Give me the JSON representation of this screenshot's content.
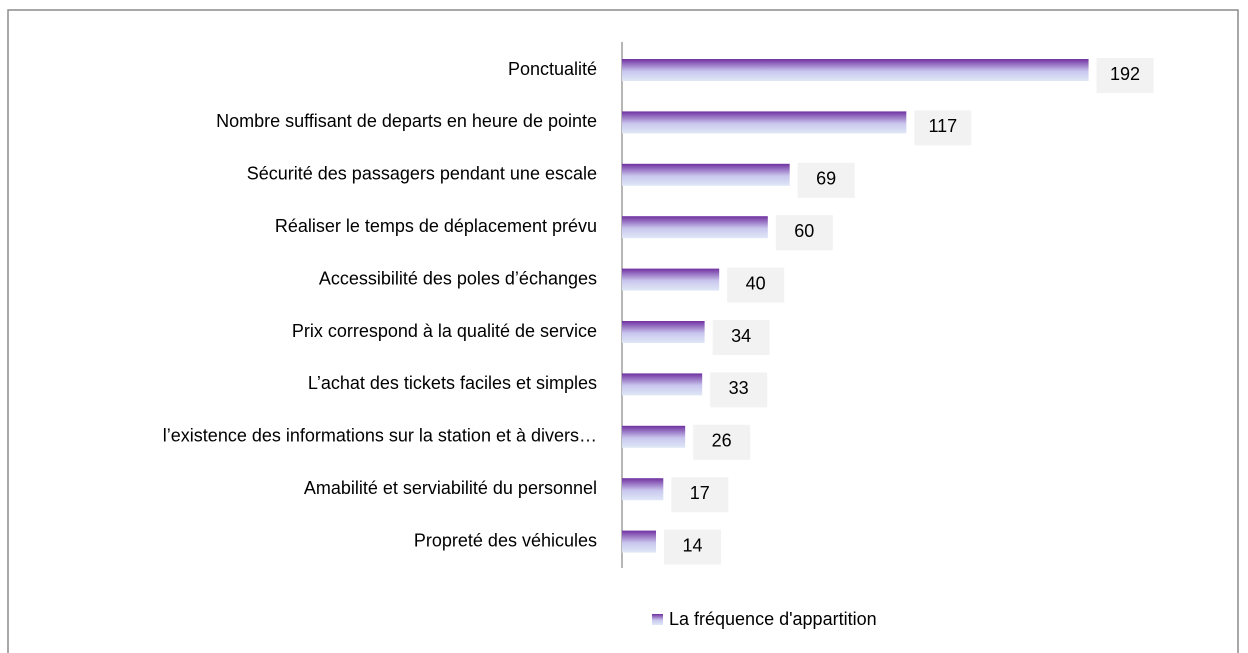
{
  "chart_data": {
    "type": "bar",
    "orientation": "horizontal",
    "categories": [
      "Ponctualité",
      "Nombre suffisant de departs en heure de pointe",
      "Sécurité des passagers pendant une escale",
      "Réaliser le temps de déplacement prévu",
      "Accessibilité des poles d’échanges",
      "Prix correspond à la qualité de service",
      "L’achat des tickets faciles et simples",
      "l’existence des informations sur la station et à divers…",
      "Amabilité et serviabilité du personnel",
      "Propreté des véhicules"
    ],
    "series": [
      {
        "name": "La fréquence d'appartition",
        "color": "#7030a0",
        "values": [
          192,
          117,
          69,
          60,
          40,
          34,
          33,
          26,
          17,
          14
        ]
      }
    ],
    "xlim": [
      0,
      200
    ],
    "legend": "bottom"
  }
}
